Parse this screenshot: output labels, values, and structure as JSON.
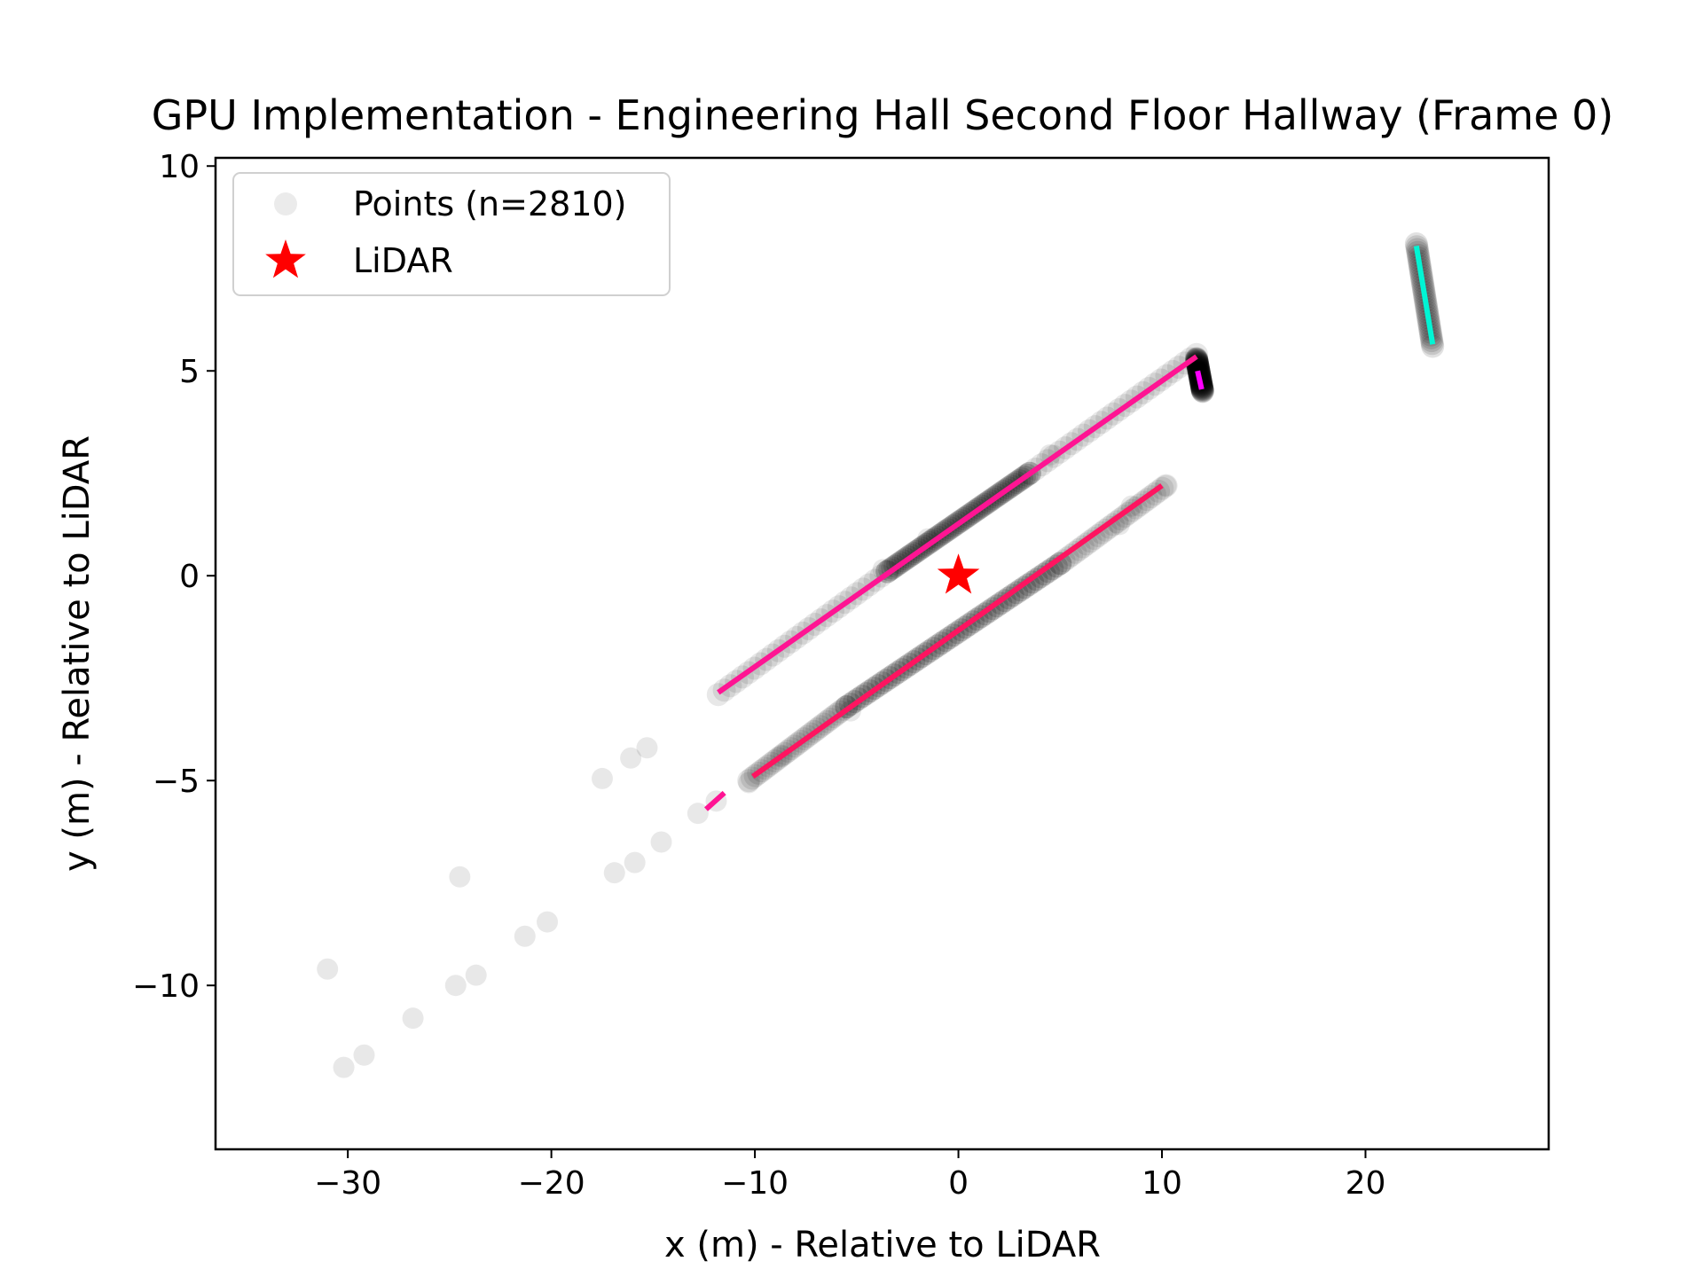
{
  "chart_data": {
    "type": "scatter",
    "title": "GPU Implementation - Engineering Hall Second Floor Hallway (Frame 0)",
    "xlabel": "x (m) - Relative to LiDAR",
    "ylabel": "y (m) - Relative to LiDAR",
    "xlim": [
      -36.5,
      29
    ],
    "ylim": [
      -14,
      10.2
    ],
    "xticks": [
      -30,
      -20,
      -10,
      0,
      10,
      20
    ],
    "yticks": [
      -10,
      -5,
      0,
      5,
      10
    ],
    "xtick_labels": [
      "−30",
      "−20",
      "−10",
      "0",
      "10",
      "20"
    ],
    "ytick_labels": [
      "−10",
      "−5",
      "0",
      "5",
      "10"
    ],
    "grid": false,
    "legend": {
      "placement": "top-left",
      "entries": [
        {
          "label": "Points (n=2810)",
          "marker": "circle",
          "color": "#aaaaaa"
        },
        {
          "label": "LiDAR",
          "marker": "star",
          "color": "#ff0000"
        }
      ]
    },
    "lidar": {
      "x": 0,
      "y": 0,
      "color": "#ff0000"
    },
    "point_segments": [
      {
        "x": [
          -11.8,
          -3.5
        ],
        "y": [
          -2.9,
          0.1
        ],
        "weight": 0.35
      },
      {
        "x": [
          -3.5,
          3.5
        ],
        "y": [
          0.1,
          2.5
        ],
        "weight": 1.0
      },
      {
        "x": [
          3.5,
          11.7
        ],
        "y": [
          2.5,
          5.4
        ],
        "weight": 0.35
      },
      {
        "x": [
          11.7,
          12.0
        ],
        "y": [
          5.3,
          4.5
        ],
        "weight": 0.85
      },
      {
        "x": [
          -10.3,
          -5.5
        ],
        "y": [
          -5.0,
          -3.2
        ],
        "weight": 0.4
      },
      {
        "x": [
          -5.5,
          5.0
        ],
        "y": [
          -3.2,
          0.3
        ],
        "weight": 1.0
      },
      {
        "x": [
          5.0,
          10.2
        ],
        "y": [
          0.3,
          2.2
        ],
        "weight": 0.35
      },
      {
        "x": [
          22.5,
          23.3
        ],
        "y": [
          8.1,
          5.6
        ],
        "weight": 0.55
      }
    ],
    "scattered_points": [
      {
        "x": -31.0,
        "y": -9.6
      },
      {
        "x": -30.2,
        "y": -12.0
      },
      {
        "x": -29.2,
        "y": -11.7
      },
      {
        "x": -26.8,
        "y": -10.8
      },
      {
        "x": -24.7,
        "y": -10.0
      },
      {
        "x": -24.5,
        "y": -7.35
      },
      {
        "x": -23.7,
        "y": -9.75
      },
      {
        "x": -21.3,
        "y": -8.8
      },
      {
        "x": -20.2,
        "y": -8.45
      },
      {
        "x": -17.5,
        "y": -4.95
      },
      {
        "x": -16.9,
        "y": -7.25
      },
      {
        "x": -16.1,
        "y": -4.45
      },
      {
        "x": -15.9,
        "y": -7.0
      },
      {
        "x": -15.3,
        "y": -4.2
      },
      {
        "x": -14.6,
        "y": -6.5
      },
      {
        "x": -12.8,
        "y": -5.8
      },
      {
        "x": -11.9,
        "y": -5.5
      },
      {
        "x": -10.3,
        "y": -5.05
      },
      {
        "x": -8.7,
        "y": -4.4
      },
      {
        "x": -5.3,
        "y": -3.3
      },
      {
        "x": -3.7,
        "y": 0.15
      },
      {
        "x": -1.5,
        "y": 0.9
      },
      {
        "x": 4.5,
        "y": 2.95
      },
      {
        "x": 8.5,
        "y": 1.7
      },
      {
        "x": 7.9,
        "y": 1.25
      },
      {
        "x": 10.2,
        "y": 2.2
      },
      {
        "x": 11.7,
        "y": 5.3
      }
    ],
    "fitted_lines": [
      {
        "x": [
          -11.8,
          11.7
        ],
        "y": [
          -2.85,
          5.35
        ],
        "color": "#ff1493"
      },
      {
        "x": [
          -10.1,
          10.0
        ],
        "y": [
          -4.9,
          2.2
        ],
        "color": "#ff1460"
      },
      {
        "x": [
          -12.4,
          -11.5
        ],
        "y": [
          -5.7,
          -5.3
        ],
        "color": "#ff1493"
      },
      {
        "x": [
          11.75,
          11.95
        ],
        "y": [
          5.0,
          4.55
        ],
        "color": "#ff00ff"
      },
      {
        "x": [
          22.5,
          23.3
        ],
        "y": [
          8.05,
          5.65
        ],
        "color": "#00f5d4"
      }
    ]
  }
}
